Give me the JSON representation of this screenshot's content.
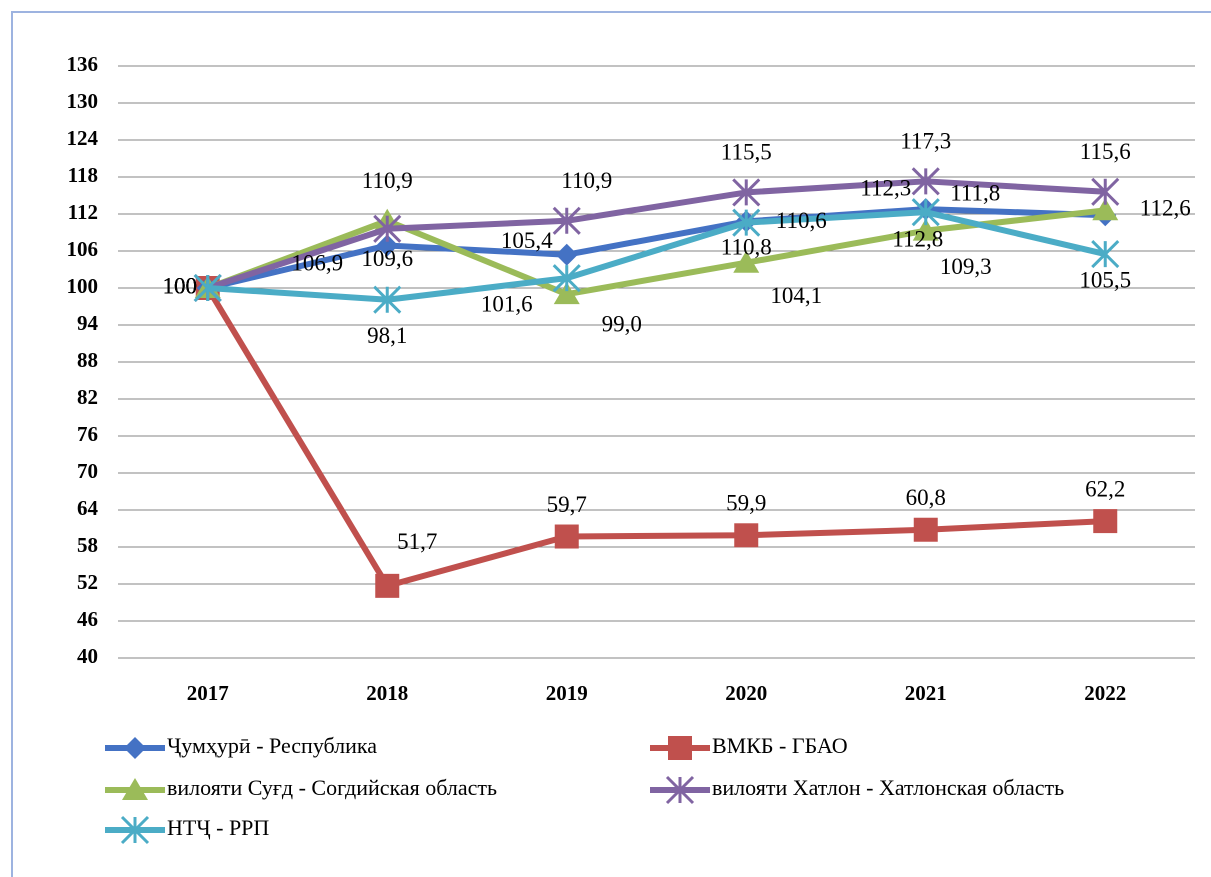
{
  "chart_data": {
    "type": "line",
    "categories": [
      "2017",
      "2018",
      "2019",
      "2020",
      "2021",
      "2022"
    ],
    "ylim": [
      40,
      136
    ],
    "yticks": [
      40,
      46,
      52,
      58,
      64,
      70,
      76,
      82,
      88,
      94,
      100,
      106,
      112,
      118,
      124,
      130,
      136
    ],
    "grid": true,
    "series": [
      {
        "name": "Ҷумҳурӣ - Республика",
        "color": "#4472c4",
        "marker": "diamond",
        "values": [
          100,
          106.9,
          105.4,
          110.8,
          112.8,
          111.8
        ],
        "value_labels": [
          "100",
          "106,9",
          "105,4",
          "110,8",
          "112,8",
          "111,8"
        ]
      },
      {
        "name": "ВМКБ - ГБАО",
        "color": "#c0504d",
        "marker": "square",
        "values": [
          100,
          51.7,
          59.7,
          59.9,
          60.8,
          62.2
        ],
        "value_labels": [
          "100",
          "51,7",
          "59,7",
          "59,9",
          "60,8",
          "62,2"
        ]
      },
      {
        "name": "вилояти Суғд - Согдийская область",
        "color": "#9bbb59",
        "marker": "triangle",
        "values": [
          100,
          110.9,
          99.0,
          104.1,
          109.3,
          112.6
        ],
        "value_labels": [
          "100",
          "110,9",
          "99,0",
          "104,1",
          "109,3",
          "112,6"
        ]
      },
      {
        "name": "вилояти Хатлон - Хатлонская область",
        "color": "#8064a2",
        "marker": "star",
        "values": [
          100,
          109.6,
          110.9,
          115.5,
          117.3,
          115.6
        ],
        "value_labels": [
          "100",
          "109,6",
          "110,9",
          "115,5",
          "117,3",
          "115,6"
        ]
      },
      {
        "name": "НТҶ - РРП",
        "color": "#4bacc6",
        "marker": "star",
        "values": [
          100,
          98.1,
          101.6,
          110.6,
          112.3,
          105.5
        ],
        "value_labels": [
          "100",
          "98,1",
          "101,6",
          "110,6",
          "112,3",
          "105,5"
        ]
      }
    ],
    "legend": "bottom"
  }
}
